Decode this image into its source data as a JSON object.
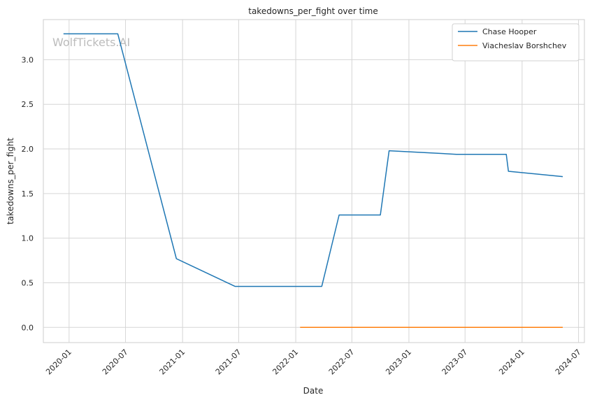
{
  "chart_data": {
    "type": "line",
    "title": "takedowns_per_fight over time",
    "xlabel": "Date",
    "ylabel": "takedowns_per_fight",
    "watermark": "WolfTickets.AI",
    "grid": true,
    "legend_position": "top-right",
    "x_ticks": [
      "2020-01",
      "2020-07",
      "2021-01",
      "2021-07",
      "2022-01",
      "2022-07",
      "2023-01",
      "2023-07",
      "2024-01",
      "2024-07"
    ],
    "y_ticks": [
      "0.0",
      "0.5",
      "1.0",
      "1.5",
      "2.0",
      "2.5",
      "3.0"
    ],
    "xlim": [
      "2019-10-10",
      "2024-07-20"
    ],
    "ylim": [
      -0.17,
      3.45
    ],
    "series": [
      {
        "name": "Chase Hooper",
        "color": "#1f77b4",
        "points": [
          {
            "x": "2019-12-14",
            "y": 3.29
          },
          {
            "x": "2020-06-06",
            "y": 3.29
          },
          {
            "x": "2020-12-12",
            "y": 0.77
          },
          {
            "x": "2021-06-19",
            "y": 0.46
          },
          {
            "x": "2022-03-26",
            "y": 0.46
          },
          {
            "x": "2022-05-21",
            "y": 1.26
          },
          {
            "x": "2022-10-01",
            "y": 1.26
          },
          {
            "x": "2022-10-29",
            "y": 1.98
          },
          {
            "x": "2023-06-03",
            "y": 1.94
          },
          {
            "x": "2023-11-11",
            "y": 1.94
          },
          {
            "x": "2023-11-18",
            "y": 1.75
          },
          {
            "x": "2024-05-11",
            "y": 1.69
          }
        ]
      },
      {
        "name": "Viacheslav Borshchev",
        "color": "#ff7f0e",
        "points": [
          {
            "x": "2022-01-15",
            "y": 0.0
          },
          {
            "x": "2024-05-11",
            "y": 0.0
          }
        ]
      }
    ]
  }
}
